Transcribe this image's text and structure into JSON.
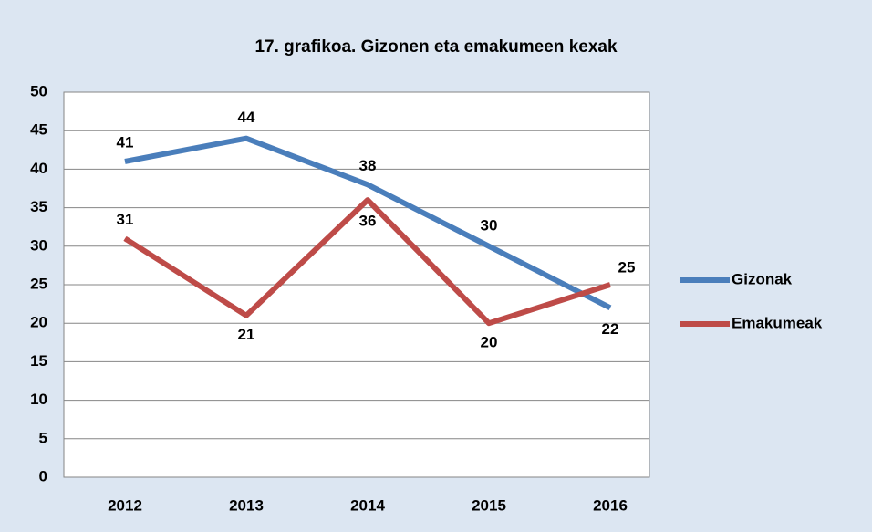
{
  "chart_data": {
    "type": "line",
    "title": "17. grafikoa. Gizonen eta emakumeen kexak",
    "categories": [
      "2012",
      "2013",
      "2014",
      "2015",
      "2016"
    ],
    "series": [
      {
        "name": "Gizonak",
        "color": "#4a7ebb",
        "values": [
          41,
          44,
          38,
          30,
          22
        ]
      },
      {
        "name": "Emakumeak",
        "color": "#be4b48",
        "values": [
          31,
          21,
          36,
          20,
          25
        ]
      }
    ],
    "ylim": [
      0,
      50
    ],
    "yticks": [
      0,
      5,
      10,
      15,
      20,
      25,
      30,
      35,
      40,
      45,
      50
    ],
    "grid": true,
    "legend": "right"
  }
}
